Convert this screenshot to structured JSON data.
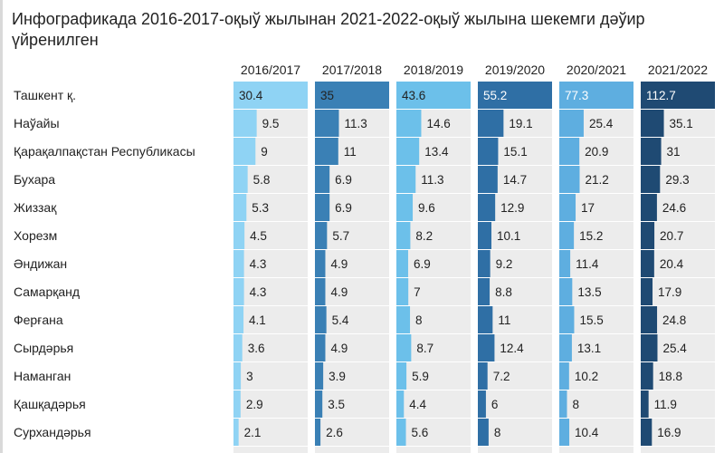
{
  "title": "Инфографикада 2016-2017-оқыў жылынан 2021-2022-оқыў жылына шекемги дәўир үйренилген",
  "chart_data": {
    "type": "table",
    "columns": [
      "2016/2017",
      "2017/2018",
      "2018/2019",
      "2019/2020",
      "2020/2021",
      "2021/2022"
    ],
    "column_colors": [
      "#8fd3f4",
      "#3a80b5",
      "#6cc0ea",
      "#2f6fa5",
      "#5eaee0",
      "#1f4a73"
    ],
    "rows": [
      {
        "label": "Ташкент қ.",
        "values": [
          30.4,
          35,
          43.6,
          55.2,
          77.3,
          112.7
        ]
      },
      {
        "label": "Наўайы",
        "values": [
          9.5,
          11.3,
          14.6,
          19.1,
          25.4,
          35.1
        ]
      },
      {
        "label": "Қарақалпақстан Республикасы",
        "values": [
          9,
          11,
          13.4,
          15.1,
          20.9,
          31
        ]
      },
      {
        "label": "Бухара",
        "values": [
          5.8,
          6.9,
          11.3,
          14.7,
          21.2,
          29.3
        ]
      },
      {
        "label": "Жиззақ",
        "values": [
          5.3,
          6.9,
          9.6,
          12.9,
          17,
          24.6
        ]
      },
      {
        "label": "Хорезм",
        "values": [
          4.5,
          5.7,
          8.2,
          10.1,
          15.2,
          20.7
        ]
      },
      {
        "label": "Әндижан",
        "values": [
          4.3,
          4.9,
          6.9,
          9.2,
          11.4,
          20.4
        ]
      },
      {
        "label": "Самарқанд",
        "values": [
          4.3,
          4.9,
          7,
          8.8,
          13.5,
          17.9
        ]
      },
      {
        "label": "Ферғана",
        "values": [
          4.1,
          5.4,
          8,
          11,
          15.5,
          24.8
        ]
      },
      {
        "label": "Сырдәрья",
        "values": [
          3.6,
          4.9,
          8.7,
          12.4,
          13.1,
          25.4
        ]
      },
      {
        "label": "Наманган",
        "values": [
          3,
          3.9,
          5.9,
          7.2,
          10.2,
          18.8
        ]
      },
      {
        "label": "Қашқадәрья",
        "values": [
          2.9,
          3.5,
          4.4,
          6,
          8,
          11.9
        ]
      },
      {
        "label": "Сурхандәрья",
        "values": [
          2.1,
          2.6,
          5.6,
          8,
          10.4,
          16.9
        ]
      }
    ]
  }
}
